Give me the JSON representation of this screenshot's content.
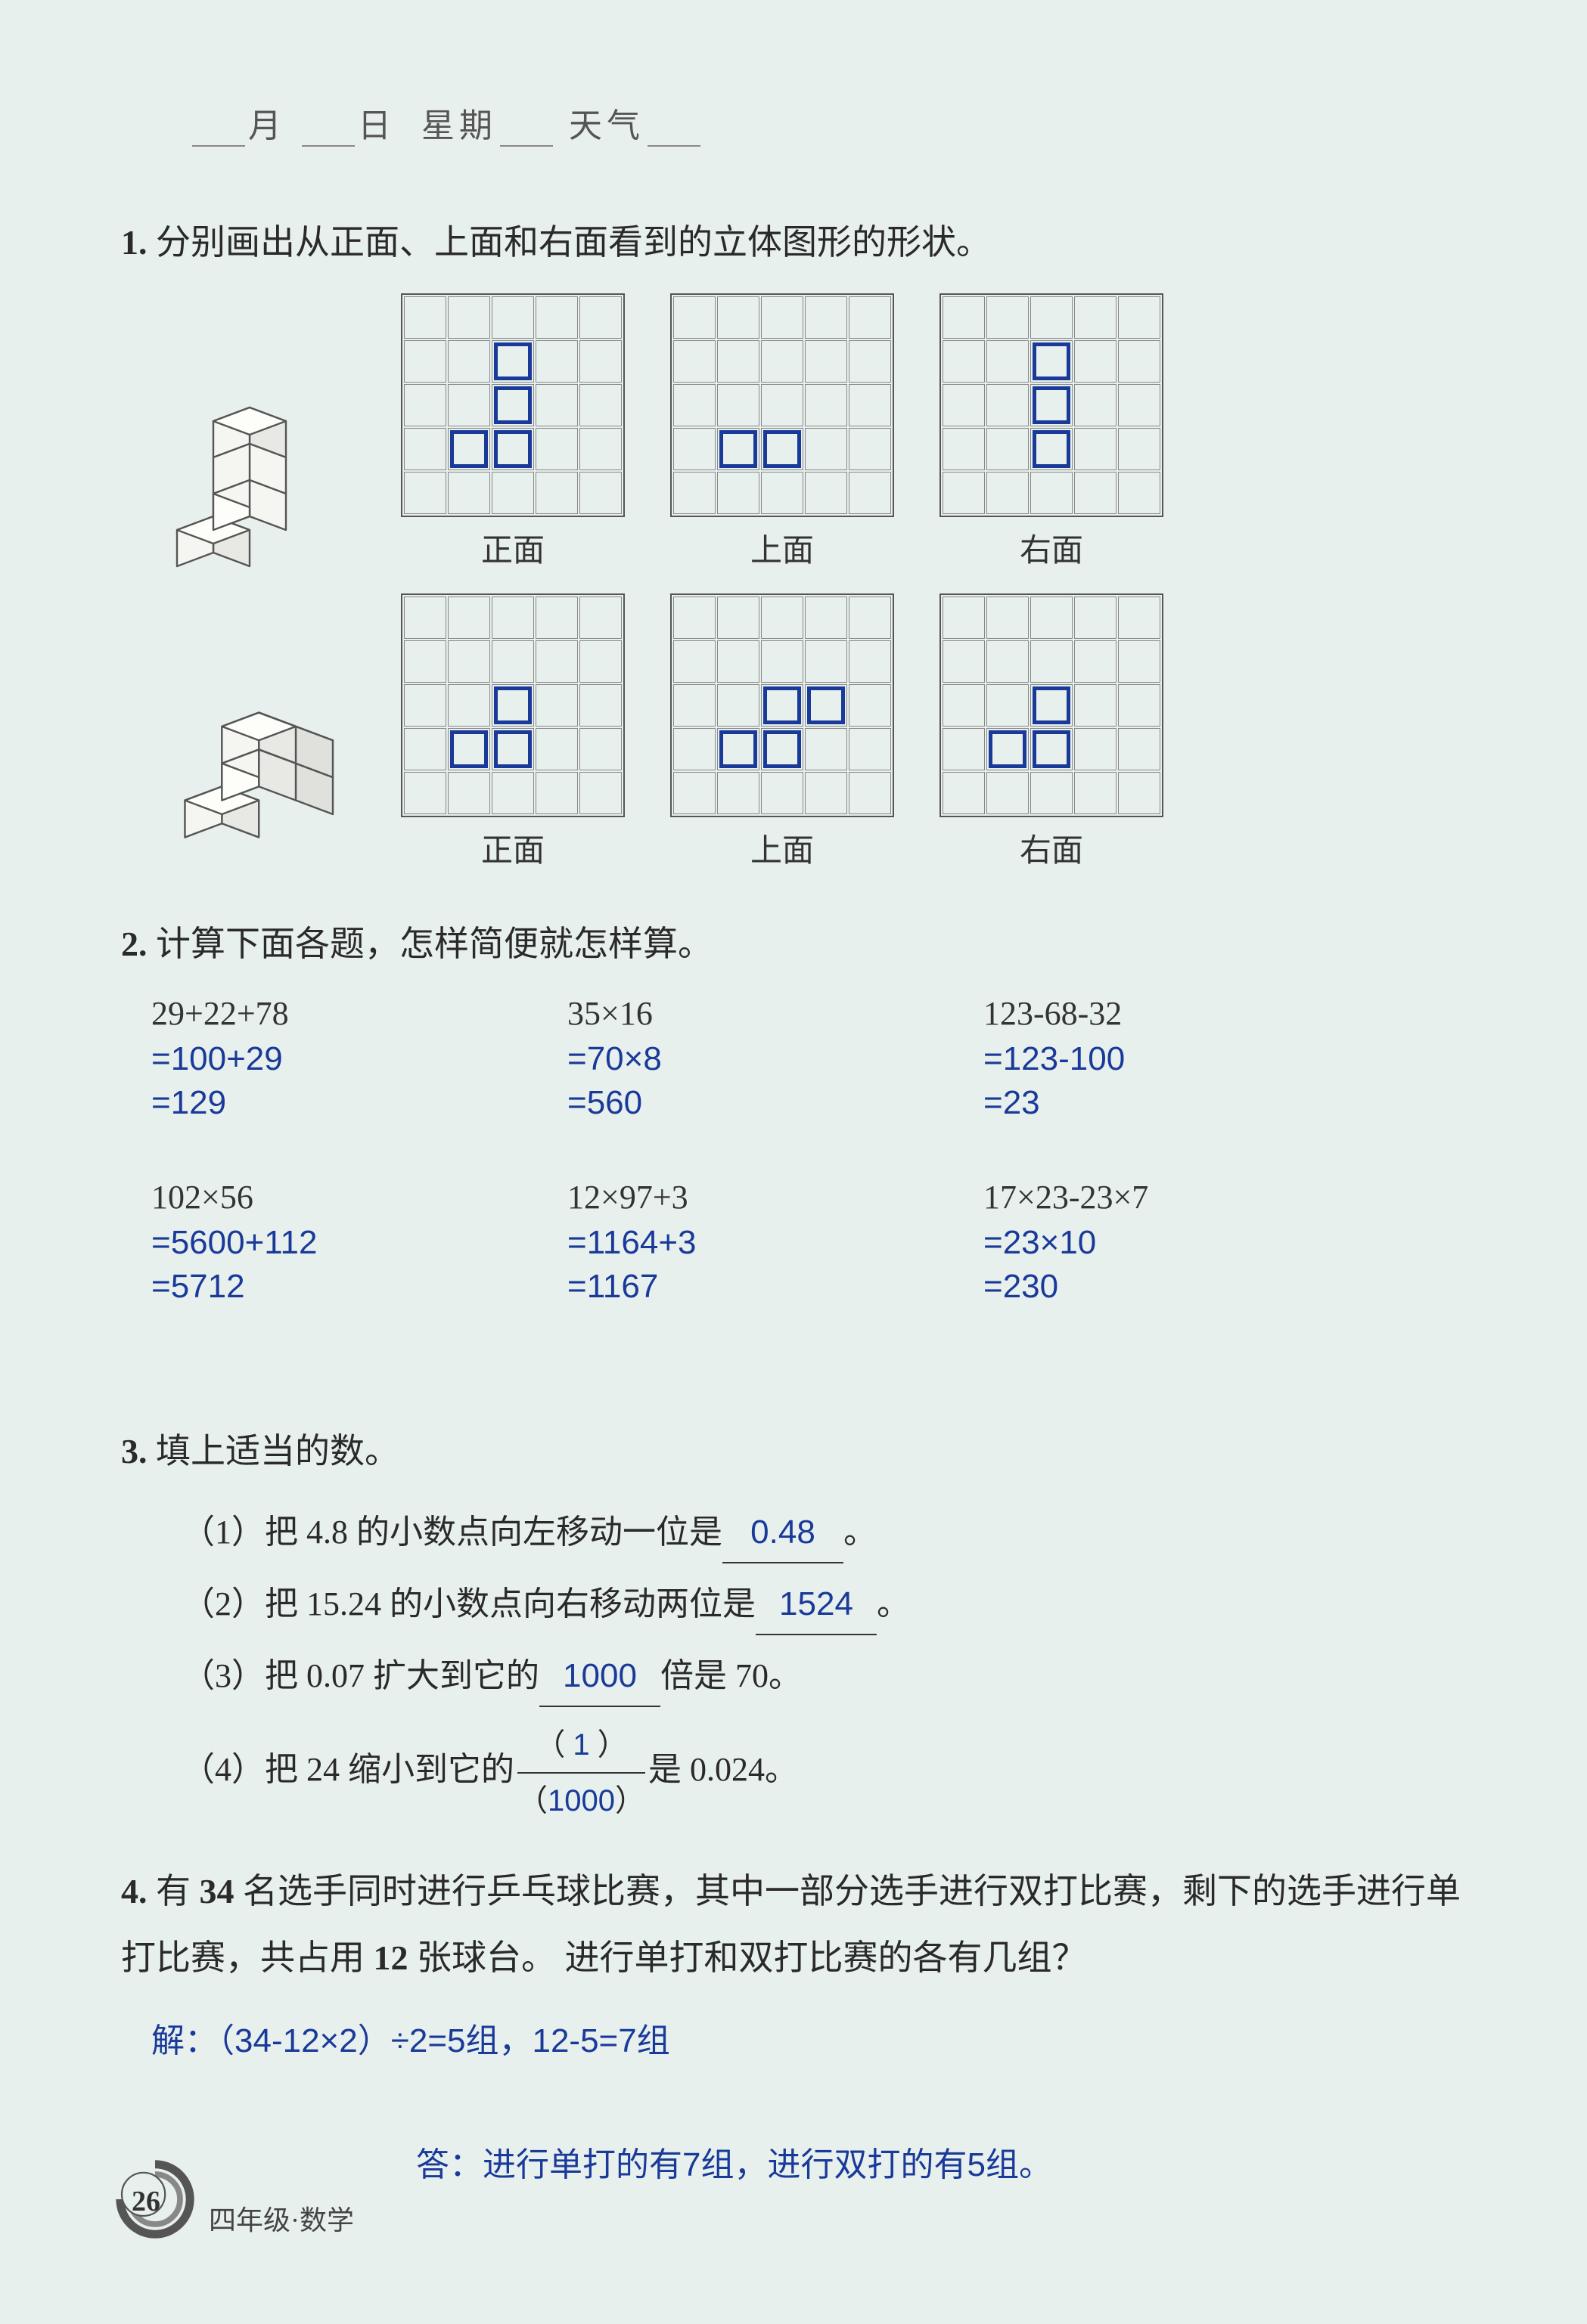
{
  "header": {
    "month": "月",
    "day": "日",
    "weekday": "星期",
    "weather": "天气"
  },
  "q1": {
    "num": "1.",
    "text": "分别画出从正面、上面和右面看到的立体图形的形状。",
    "views": [
      {
        "front_label": "正面",
        "top_label": "上面",
        "right_label": "右面",
        "front_cells": [
          [
            1,
            2
          ],
          [
            2,
            2
          ],
          [
            3,
            1
          ],
          [
            3,
            2
          ]
        ],
        "top_cells": [
          [
            3,
            1
          ],
          [
            3,
            2
          ]
        ],
        "right_cells": [
          [
            1,
            2
          ],
          [
            2,
            2
          ],
          [
            3,
            2
          ]
        ]
      },
      {
        "front_label": "正面",
        "top_label": "上面",
        "right_label": "右面",
        "front_cells": [
          [
            2,
            2
          ],
          [
            3,
            1
          ],
          [
            3,
            2
          ]
        ],
        "top_cells": [
          [
            2,
            2
          ],
          [
            2,
            3
          ],
          [
            3,
            1
          ],
          [
            3,
            2
          ]
        ],
        "right_cells": [
          [
            2,
            2
          ],
          [
            3,
            1
          ],
          [
            3,
            2
          ]
        ]
      }
    ],
    "grid_rows": 5,
    "grid_cols": 5,
    "mark_color": "#1a3a9a",
    "grid_line_color": "#888888"
  },
  "q2": {
    "num": "2.",
    "text": "计算下面各题，怎样简便就怎样算。",
    "problems": [
      [
        {
          "expr": "29+22+78",
          "steps": [
            "=100+29",
            "=129"
          ]
        },
        {
          "expr": "35×16",
          "steps": [
            "=70×8",
            "=560"
          ]
        },
        {
          "expr": "123-68-32",
          "steps": [
            "=123-100",
            "=23"
          ]
        }
      ],
      [
        {
          "expr": "102×56",
          "steps": [
            "=5600+112",
            "=5712"
          ]
        },
        {
          "expr": "12×97+3",
          "steps": [
            "=1164+3",
            "=1167"
          ]
        },
        {
          "expr": "17×23-23×7",
          "steps": [
            "=23×10",
            "=230"
          ]
        }
      ]
    ],
    "answer_color": "#1a3a9a"
  },
  "q3": {
    "num": "3.",
    "text": "填上适当的数。",
    "items": [
      {
        "pre": "（1）把 4.8 的小数点向左移动一位是",
        "ans": "0.48",
        "post": "。"
      },
      {
        "pre": "（2）把 15.24 的小数点向右移动两位是",
        "ans": "1524",
        "post": "。"
      },
      {
        "pre": "（3）把 0.07 扩大到它的",
        "ans": "1000",
        "post": "倍是 70。"
      },
      {
        "pre": "（4）把 24 缩小到它的",
        "frac_top": "1",
        "frac_bot": "1000",
        "post": "是 0.024。"
      }
    ]
  },
  "q4": {
    "num": "4.",
    "text_parts": [
      "有 ",
      "34",
      " 名选手同时进行乒乓球比赛，其中一部分选手进行双打比赛，剩下的选手进行单打比赛，共占用 ",
      "12",
      " 张球台。 进行单打和双打比赛的各有几组？"
    ],
    "solution": "解：（34-12×2）÷2=5组，12-5=7组",
    "answer": "答：进行单打的有7组，进行双打的有5组。"
  },
  "footer": {
    "page": "26",
    "subject": "四年级·数学"
  }
}
